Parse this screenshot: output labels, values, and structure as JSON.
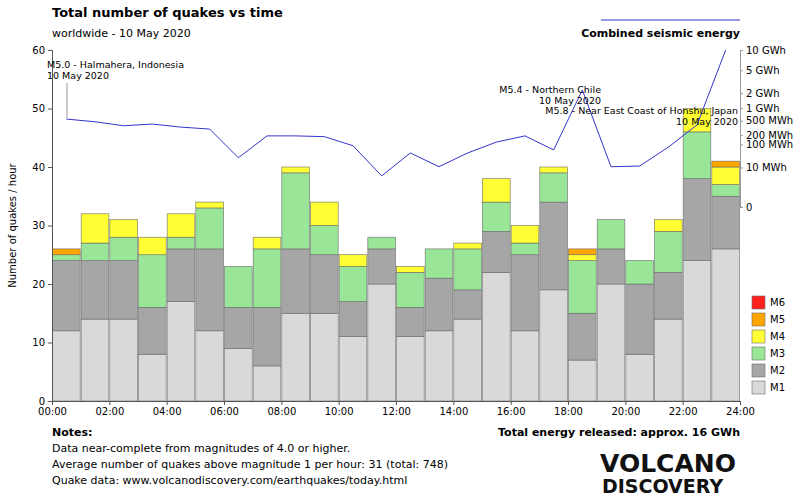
{
  "chart_data": {
    "type": "bar",
    "stacked": true,
    "grid": false,
    "legend": "right",
    "title": "Total number of quakes vs time",
    "subtitle": "worldwide - 10 May 2020",
    "y_label": "Number of quakes / hour",
    "x": [
      0.5,
      1.5,
      2.5,
      3.5,
      4.5,
      5.5,
      6.5,
      7.5,
      8.5,
      9.5,
      10.5,
      11.5,
      12.5,
      13.5,
      14.5,
      15.5,
      16.5,
      17.5,
      18.5,
      19.5,
      20.5,
      21.5,
      22.5,
      23.5
    ],
    "xlim": [
      0,
      24
    ],
    "xticks": [
      {
        "value": 0,
        "label": "00:00"
      },
      {
        "value": 2,
        "label": "02:00"
      },
      {
        "value": 4,
        "label": "04:00"
      },
      {
        "value": 6,
        "label": "06:00"
      },
      {
        "value": 8,
        "label": "08:00"
      },
      {
        "value": 10,
        "label": "10:00"
      },
      {
        "value": 12,
        "label": "12:00"
      },
      {
        "value": 14,
        "label": "14:00"
      },
      {
        "value": 16,
        "label": "16:00"
      },
      {
        "value": 18,
        "label": "18:00"
      },
      {
        "value": 20,
        "label": "20:00"
      },
      {
        "value": 22,
        "label": "22:00"
      },
      {
        "value": 24,
        "label": "24:00"
      }
    ],
    "ylim": [
      0,
      60
    ],
    "yticks": [
      0,
      10,
      20,
      30,
      40,
      50,
      60
    ],
    "y2lim": [
      0,
      10000
    ],
    "y2ticks": [
      0,
      {
        "value": 10,
        "label": "10 MWh"
      },
      {
        "value": 100,
        "label": "100 MWh"
      },
      {
        "value": 200,
        "label": "200 MWh"
      },
      {
        "value": 500,
        "label": "500 MWh"
      },
      {
        "value": 1000,
        "label": "1 GWh"
      },
      {
        "value": 2000,
        "label": "2 GWh"
      },
      {
        "value": 5000,
        "label": "5 GWh"
      },
      {
        "value": 10000,
        "label": "10 GWh"
      }
    ],
    "series": [
      {
        "name": "M1",
        "color": "#d9d9d9",
        "values": [
          12,
          14,
          14,
          8,
          17,
          12,
          9,
          6,
          15,
          15,
          11,
          20,
          11,
          12,
          14,
          22,
          12,
          19,
          7,
          20,
          8,
          14,
          24,
          26
        ]
      },
      {
        "name": "M2",
        "color": "#a6a6a6",
        "values": [
          12,
          10,
          10,
          8,
          9,
          14,
          7,
          10,
          11,
          10,
          6,
          6,
          5,
          9,
          5,
          7,
          13,
          15,
          8,
          6,
          12,
          8,
          14,
          9
        ]
      },
      {
        "name": "M3",
        "color": "#99e699",
        "values": [
          1,
          3,
          4,
          9,
          2,
          7,
          7,
          10,
          13,
          5,
          6,
          2,
          6,
          5,
          7,
          5,
          2,
          5,
          9,
          5,
          4,
          7,
          8,
          2
        ]
      },
      {
        "name": "M4",
        "color": "#ffff33",
        "values": [
          0,
          5,
          3,
          3,
          4,
          1,
          0,
          2,
          1,
          4,
          2,
          0,
          1,
          0,
          1,
          4,
          3,
          1,
          1,
          0,
          0,
          2,
          4,
          3
        ]
      },
      {
        "name": "M5",
        "color": "#ffa500",
        "values": [
          1,
          0,
          0,
          0,
          0,
          0,
          0,
          0,
          0,
          0,
          0,
          0,
          0,
          0,
          0,
          0,
          0,
          0,
          1,
          0,
          0,
          0,
          0,
          1
        ]
      },
      {
        "name": "M6",
        "color": "#ff2020",
        "values": [
          0,
          0,
          0,
          0,
          0,
          0,
          0,
          0,
          0,
          0,
          0,
          0,
          0,
          0,
          0,
          0,
          0,
          0,
          0,
          0,
          0,
          0,
          0,
          0
        ]
      },
      {
        "name": "Combined seismic energy",
        "type": "line",
        "axis": "y2",
        "color": "#3333cc",
        "values": [
          550,
          470,
          370,
          410,
          340,
          300,
          30,
          190,
          190,
          180,
          90,
          3,
          48,
          11,
          48,
          120,
          190,
          63,
          2300,
          11,
          12,
          80,
          390,
          10000
        ]
      }
    ],
    "annotations": [
      {
        "text": "M5.0 - Halmahera, Indonesia",
        "date": "10 May 2020"
      },
      {
        "text": "M5.4 - Northern Chile",
        "date": "10 May 2020"
      },
      {
        "text": "M5.8 - Near East Coast of Honshu, Japan",
        "date": "10 May 2020"
      }
    ],
    "notes": {
      "title": "Notes:",
      "lines": [
        "Data near-complete from magnitudes of 4.0 or higher.",
        "Average number of quakes above magnitude 1 per hour: 31 (total: 748)",
        "Quake data: www.volcanodiscovery.com/earthquakes/today.html"
      ]
    },
    "energy_total": "Total energy released: approx. 16 GWh",
    "logo": [
      "VOLCANO",
      "DISCOVERY"
    ]
  }
}
